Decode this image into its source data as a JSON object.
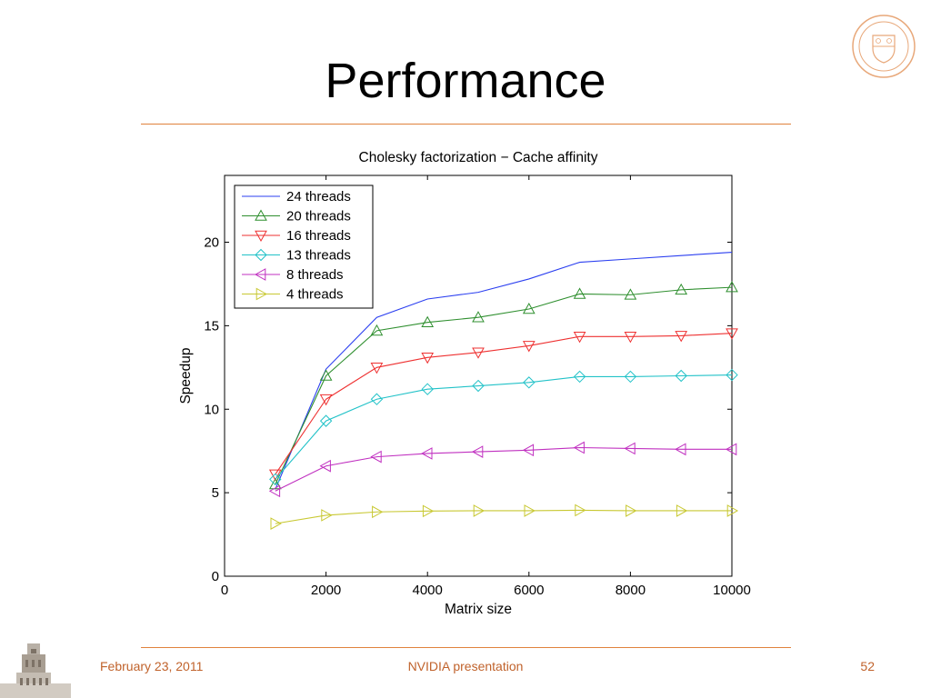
{
  "slide": {
    "title": "Performance",
    "footer": {
      "date": "February 23, 2011",
      "center": "NVIDIA presentation",
      "page": "52"
    }
  },
  "colors": {
    "accent": "#e0823c",
    "footer_text": "#c0622b"
  },
  "chart_data": {
    "type": "line",
    "title": "Cholesky factorization − Cache affinity",
    "xlabel": "Matrix size",
    "ylabel": "Speedup",
    "xlim": [
      0,
      10000
    ],
    "ylim": [
      0,
      24
    ],
    "xticks": [
      0,
      2000,
      4000,
      6000,
      8000,
      10000
    ],
    "yticks": [
      0,
      5,
      10,
      15,
      20
    ],
    "grid": false,
    "legend_position": "top-left",
    "x": [
      1000,
      2000,
      3000,
      4000,
      5000,
      6000,
      7000,
      8000,
      9000,
      10000
    ],
    "series": [
      {
        "name": "24 threads",
        "color": "#2b3ff0",
        "marker": "none",
        "values": [
          5.2,
          12.4,
          15.5,
          16.6,
          17.0,
          17.8,
          18.8,
          19.0,
          19.2,
          19.4
        ]
      },
      {
        "name": "20 threads",
        "color": "#2f8f2f",
        "marker": "triangle-up",
        "values": [
          5.5,
          12.0,
          14.7,
          15.2,
          15.5,
          16.0,
          16.9,
          16.85,
          17.15,
          17.3
        ]
      },
      {
        "name": "16 threads",
        "color": "#ee3030",
        "marker": "triangle-down",
        "values": [
          6.1,
          10.6,
          12.5,
          13.1,
          13.4,
          13.8,
          14.35,
          14.35,
          14.4,
          14.55
        ]
      },
      {
        "name": "13 threads",
        "color": "#22c2c8",
        "marker": "diamond",
        "values": [
          5.8,
          9.3,
          10.6,
          11.2,
          11.4,
          11.6,
          11.95,
          11.95,
          12.0,
          12.05
        ]
      },
      {
        "name": "8 threads",
        "color": "#c030c0",
        "marker": "triangle-left",
        "values": [
          5.1,
          6.6,
          7.15,
          7.35,
          7.45,
          7.55,
          7.7,
          7.65,
          7.6,
          7.6
        ]
      },
      {
        "name": "4 threads",
        "color": "#c8c832",
        "marker": "triangle-right",
        "values": [
          3.15,
          3.65,
          3.85,
          3.9,
          3.92,
          3.92,
          3.95,
          3.92,
          3.92,
          3.92
        ]
      }
    ]
  }
}
